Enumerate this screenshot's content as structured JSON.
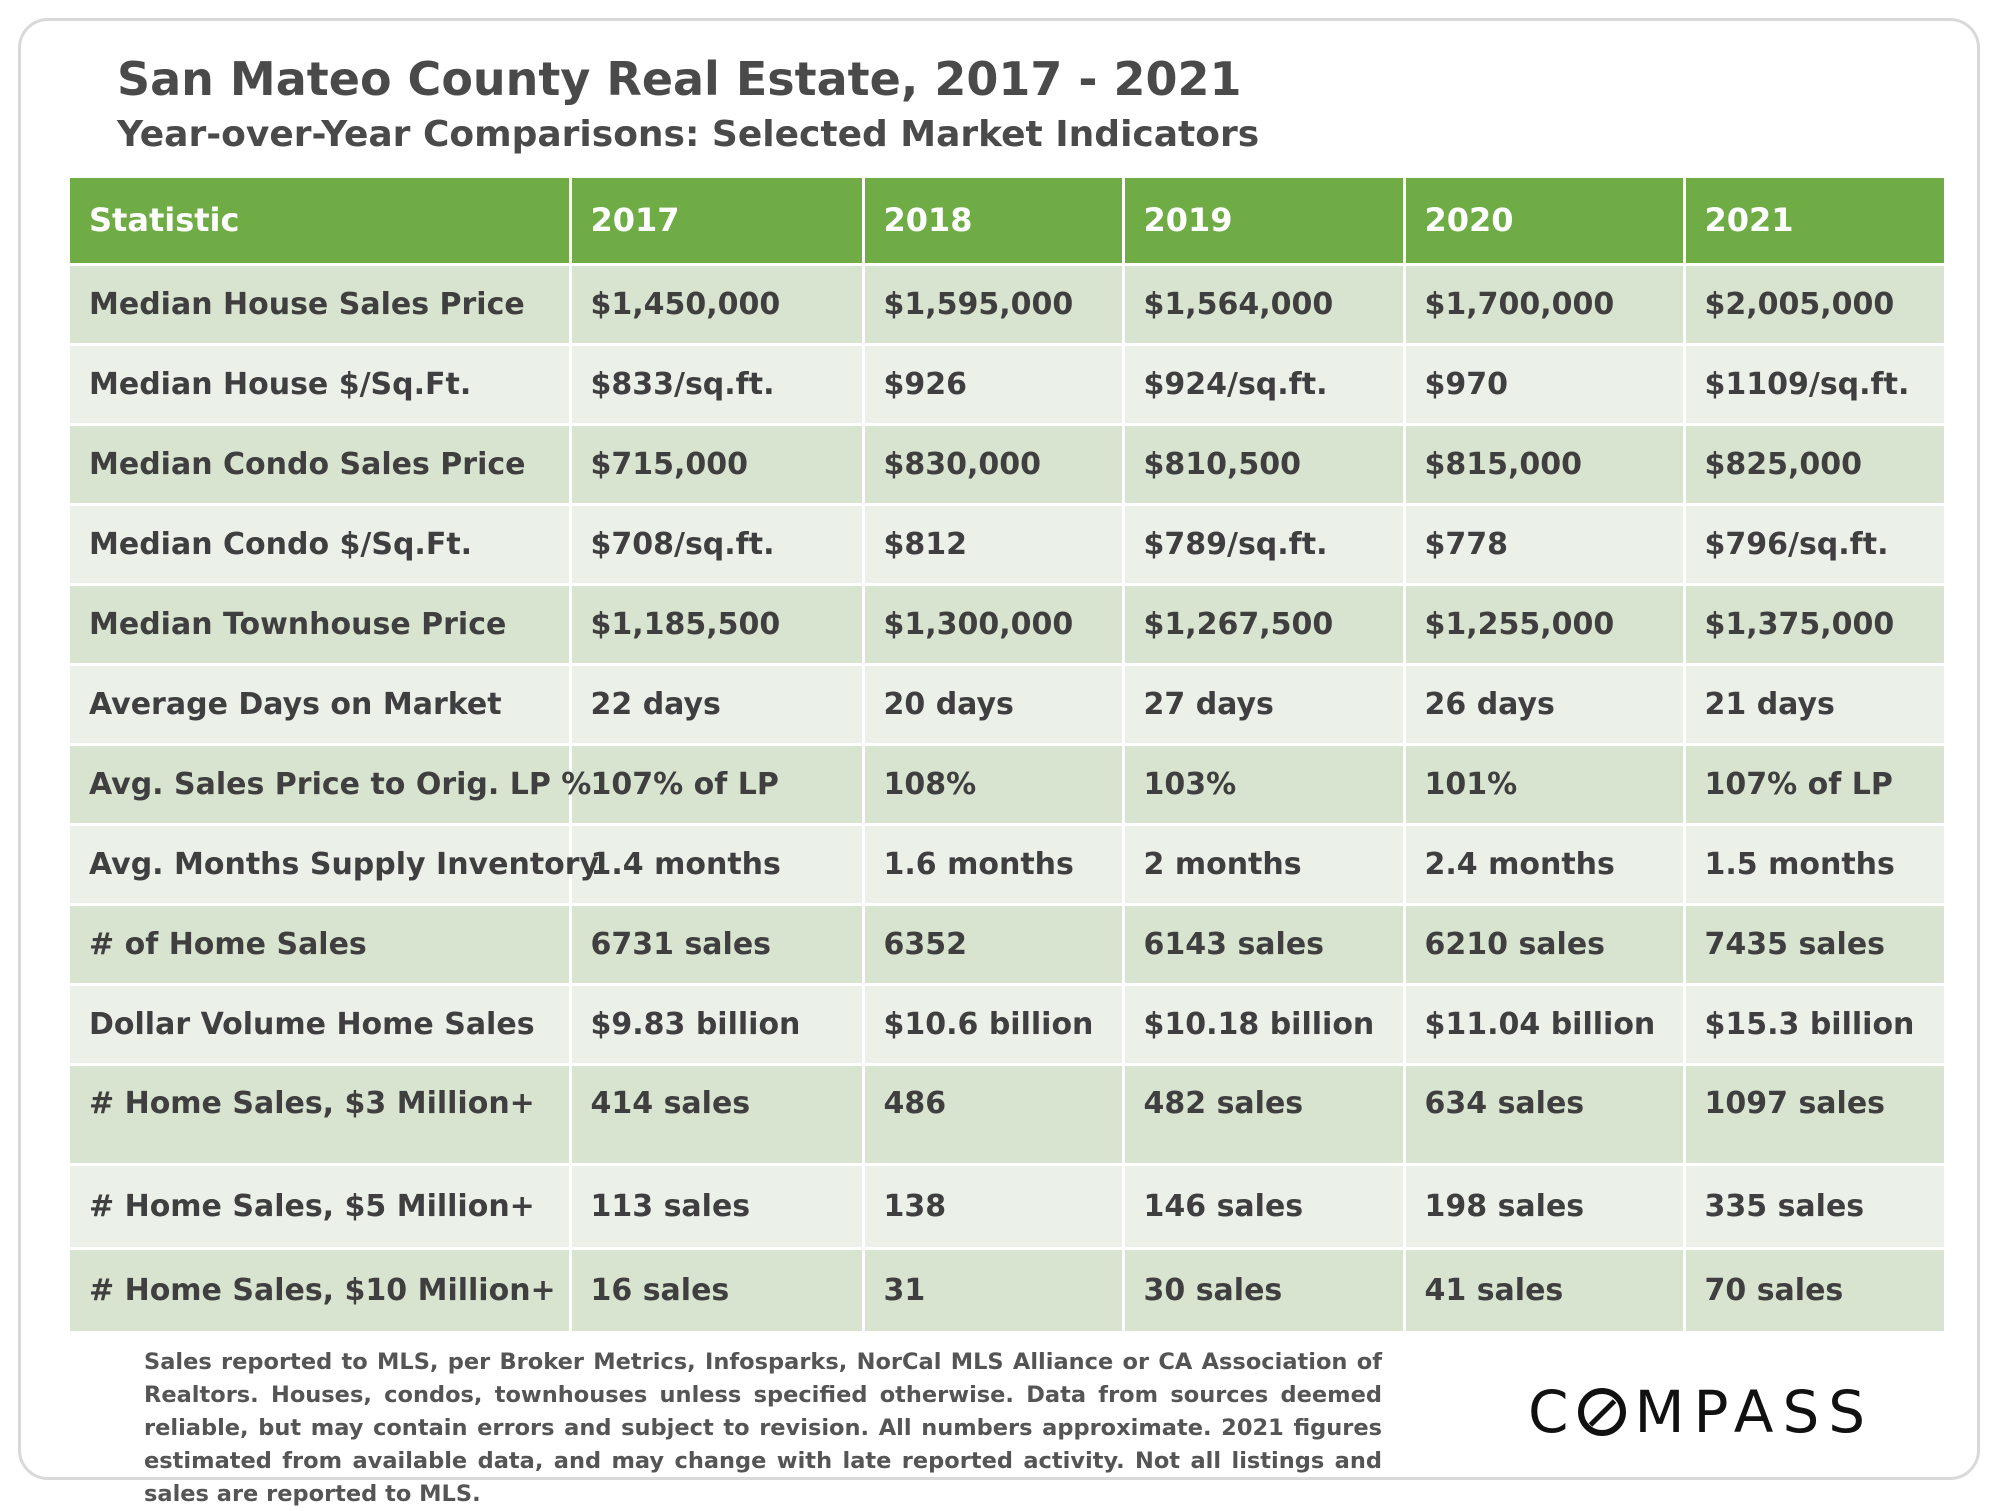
{
  "title": "San Mateo County Real Estate, 2017 - 2021",
  "subtitle": "Year-over-Year Comparisons: Selected Market Indicators",
  "chart_data": {
    "type": "table",
    "columns": [
      "Statistic",
      "2017",
      "2018",
      "2019",
      "2020",
      "2021"
    ],
    "rows": [
      [
        "Median House Sales Price",
        "$1,450,000",
        "$1,595,000",
        "$1,564,000",
        "$1,700,000",
        "$2,005,000"
      ],
      [
        "Median House $/Sq.Ft.",
        "$833/sq.ft.",
        "$926",
        "$924/sq.ft.",
        "$970",
        "$1109/sq.ft."
      ],
      [
        "Median Condo Sales Price",
        "$715,000",
        "$830,000",
        "$810,500",
        "$815,000",
        "$825,000"
      ],
      [
        "Median Condo $/Sq.Ft.",
        "$708/sq.ft.",
        "$812",
        "$789/sq.ft.",
        "$778",
        "$796/sq.ft."
      ],
      [
        "Median Townhouse Price",
        "$1,185,500",
        "$1,300,000",
        "$1,267,500",
        "$1,255,000",
        "$1,375,000"
      ],
      [
        "Average Days on Market",
        "22 days",
        "20 days",
        "27 days",
        "26 days",
        "21 days"
      ],
      [
        "Avg. Sales Price to Orig. LP %",
        "107% of LP",
        "108%",
        "103%",
        "101%",
        "107% of LP"
      ],
      [
        "Avg. Months Supply Inventory",
        "1.4 months",
        "1.6 months",
        "2 months",
        "2.4 months",
        "1.5 months"
      ],
      [
        "# of Home Sales",
        "6731 sales",
        "6352",
        "6143 sales",
        "6210 sales",
        "7435 sales"
      ],
      [
        "Dollar Volume Home Sales",
        "$9.83 billion",
        "$10.6 billion",
        "$10.18 billion",
        "$11.04 billion",
        "$15.3 billion"
      ],
      [
        "# Home Sales, $3 Million+",
        "414 sales",
        "486",
        "482 sales",
        "634 sales",
        "1097 sales"
      ],
      [
        "# Home Sales, $5 Million+",
        "113 sales",
        "138",
        "146 sales",
        "198 sales",
        "335 sales"
      ],
      [
        "# Home Sales, $10 Million+",
        "16 sales",
        "31",
        "30 sales",
        "41 sales",
        "70 sales"
      ]
    ]
  },
  "footnote": "Sales reported to MLS, per Broker Metrics, Infosparks, NorCal MLS Alliance or CA Association of Realtors. Houses, condos, townhouses unless specified otherwise. Data from sources deemed reliable, but may contain errors and subject to revision. All numbers approximate. 2021 figures estimated from available data, and may change with late reported activity. Not all listings and sales are reported to MLS.",
  "logo": "COMPASS",
  "colors": {
    "header_green": "#6fac46",
    "row_dark": "#d8e4d0",
    "row_light": "#ebf0e8"
  }
}
